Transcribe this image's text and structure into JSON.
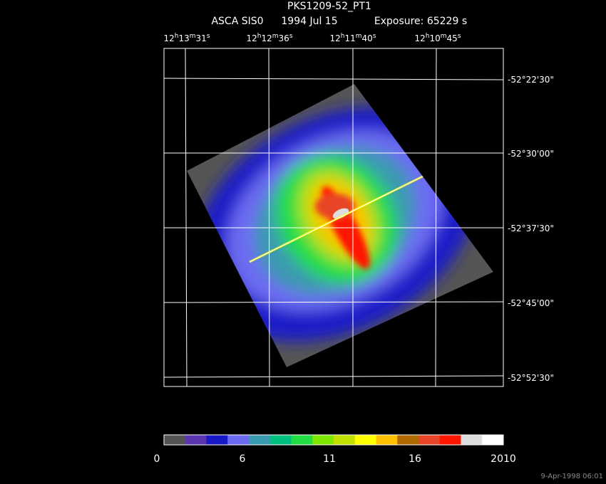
{
  "header": {
    "title": "PKS1209-52_PT1",
    "instrument": "ASCA SIS0",
    "date": "1994 Jul 15",
    "exposure": "Exposure: 65229 s"
  },
  "ra_labels": [
    [
      "12",
      "h",
      "13",
      "m",
      "31",
      "s"
    ],
    [
      "12",
      "h",
      "12",
      "m",
      "36",
      "s"
    ],
    [
      "12",
      "h",
      "11",
      "m",
      "40",
      "s"
    ],
    [
      "12",
      "h",
      "10",
      "m",
      "45",
      "s"
    ]
  ],
  "dec_labels": [
    "-52°22'30\"",
    "-52°30'00\"",
    "-52°37'30\"",
    "-52°45'00\"",
    "-52°52'30\""
  ],
  "colorbar": {
    "labels": [
      "0",
      "6",
      "11",
      "16",
      "2010"
    ],
    "colors": [
      "#555555",
      "#5a35b0",
      "#1818c8",
      "#6c6cf2",
      "#3a9ab0",
      "#00c080",
      "#22dd44",
      "#7fe800",
      "#c0e000",
      "#ffff00",
      "#ffc000",
      "#b06a00",
      "#e84428",
      "#ff1500",
      "#dedede",
      "#ffffff"
    ]
  },
  "timestamp": "9-Apr-1998 06:01"
}
